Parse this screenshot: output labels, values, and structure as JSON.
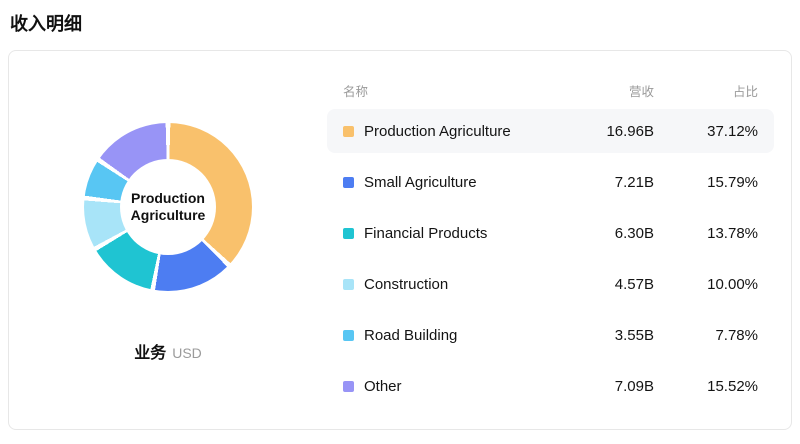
{
  "page": {
    "title": "收入明细"
  },
  "chart": {
    "center_label": "Production Agriculture",
    "footer_label": "业务",
    "footer_unit": "USD"
  },
  "table": {
    "highlight_row": 0,
    "headers": {
      "name": "名称",
      "revenue": "营收",
      "share": "占比"
    },
    "rows": [
      {
        "name": "Production Agriculture",
        "revenue": "16.96B",
        "share": "37.12%"
      },
      {
        "name": "Small Agriculture",
        "revenue": "7.21B",
        "share": "15.79%"
      },
      {
        "name": "Financial Products",
        "revenue": "6.30B",
        "share": "13.78%"
      },
      {
        "name": "Construction",
        "revenue": "4.57B",
        "share": "10.00%"
      },
      {
        "name": "Road Building",
        "revenue": "3.55B",
        "share": "7.78%"
      },
      {
        "name": "Other",
        "revenue": "7.09B",
        "share": "15.52%"
      }
    ]
  },
  "chart_data": {
    "type": "pie",
    "title": "收入明细",
    "unit": "USD",
    "center_label": "Production Agriculture",
    "categories": [
      "Production Agriculture",
      "Small Agriculture",
      "Financial Products",
      "Construction",
      "Road Building",
      "Other"
    ],
    "values": [
      37.12,
      15.79,
      13.78,
      10.0,
      7.78,
      15.52
    ],
    "revenues_billions": [
      16.96,
      7.21,
      6.3,
      4.57,
      3.55,
      7.09
    ],
    "colors": [
      "#f9c16c",
      "#4d7df2",
      "#1fc4d2",
      "#a8e4f8",
      "#58c6f3",
      "#9894f6"
    ],
    "donut": true,
    "start_angle_deg": 0,
    "legend_position": "table-right"
  }
}
